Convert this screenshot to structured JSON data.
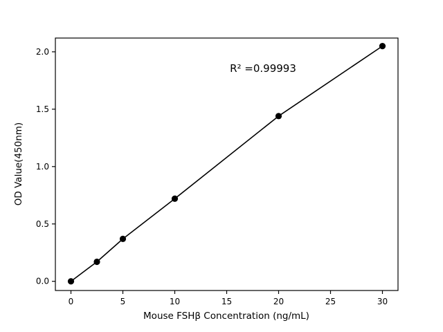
{
  "chart_data": {
    "type": "line",
    "title": "",
    "xlabel": "Mouse FSHβ Concentration (ng/mL)",
    "ylabel": "OD Value(450nm)",
    "x": [
      0,
      2.5,
      5,
      10,
      20,
      30
    ],
    "y": [
      0.0,
      0.17,
      0.37,
      0.72,
      1.44,
      2.05
    ],
    "xlim": [
      -1.5,
      31.5
    ],
    "ylim": [
      -0.08,
      2.12
    ],
    "xticks": [
      0,
      5,
      10,
      15,
      20,
      25,
      30
    ],
    "xticklabels": [
      "0",
      "5",
      "10",
      "15",
      "20",
      "25",
      "30"
    ],
    "yticks": [
      0.0,
      0.5,
      1.0,
      1.5,
      2.0
    ],
    "yticklabels": [
      "0.0",
      "0.5",
      "1.0",
      "1.5",
      "2.0"
    ],
    "annotation": {
      "text": "R² =0.99993",
      "x": 18.5,
      "y": 1.83
    },
    "grid": false,
    "legend": null,
    "line_color": "#000000",
    "marker_color": "#000000",
    "background_color": "#ffffff",
    "marker": "circle",
    "spines": "full-box"
  }
}
